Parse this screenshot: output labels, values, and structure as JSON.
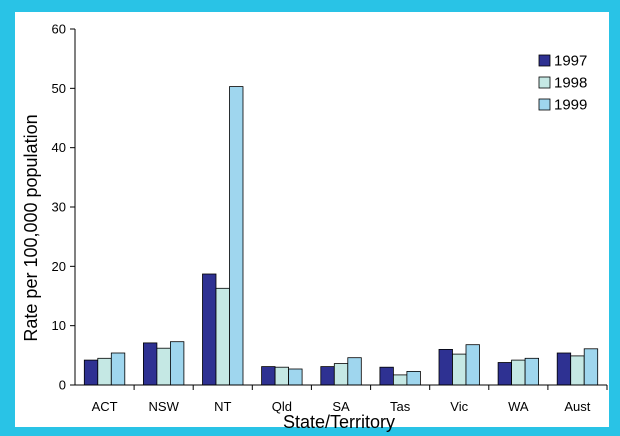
{
  "chart_data": {
    "type": "bar",
    "xlabel": "State/Territory",
    "ylabel": "Rate per 100,000 population",
    "ylim": [
      0,
      60
    ],
    "yticks": [
      0,
      10,
      20,
      30,
      40,
      50,
      60
    ],
    "categories": [
      "ACT",
      "NSW",
      "NT",
      "Qld",
      "SA",
      "Tas",
      "Vic",
      "WA",
      "Aust"
    ],
    "series": [
      {
        "name": "1997",
        "color": "#2e3192",
        "values": [
          4.2,
          7.1,
          18.7,
          3.1,
          3.1,
          3.0,
          6.0,
          3.8,
          5.4
        ]
      },
      {
        "name": "1998",
        "color": "#c5e8e4",
        "values": [
          4.5,
          6.2,
          16.3,
          3.0,
          3.6,
          1.7,
          5.2,
          4.2,
          4.9
        ]
      },
      {
        "name": "1999",
        "color": "#9fd6ee",
        "values": [
          5.4,
          7.3,
          50.3,
          2.7,
          4.6,
          2.3,
          6.8,
          4.5,
          6.1
        ]
      }
    ],
    "legend_position": "top-right",
    "grid": false
  }
}
